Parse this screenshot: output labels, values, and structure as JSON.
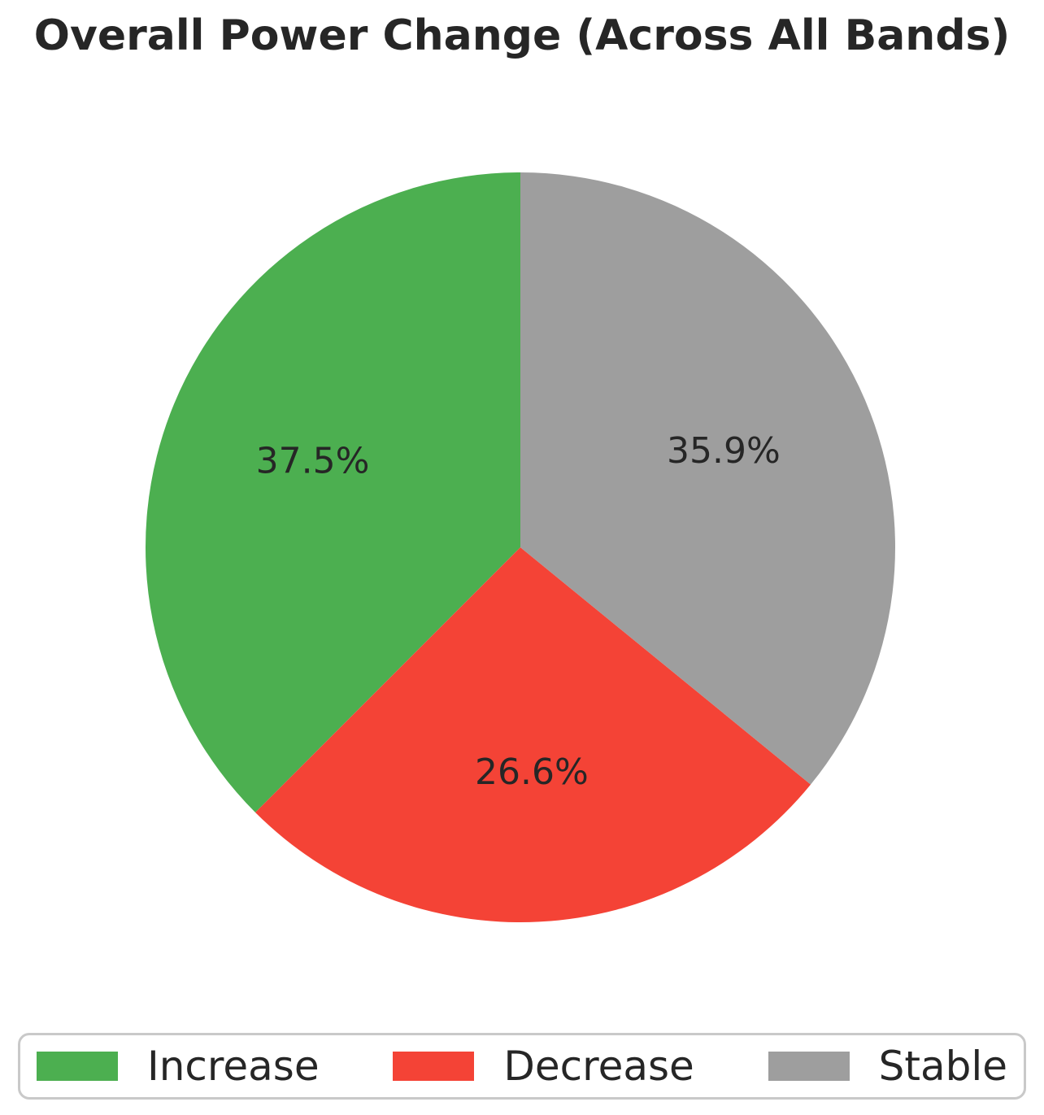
{
  "chart_data": {
    "type": "pie",
    "title": "Overall Power Change (Across All Bands)",
    "labels": [
      "Increase",
      "Decrease",
      "Stable"
    ],
    "values": [
      37.5,
      26.6,
      35.9
    ],
    "pct_labels": [
      "37.5%",
      "26.6%",
      "35.9%"
    ],
    "colors": [
      "#4caf50",
      "#f44336",
      "#9e9e9e"
    ],
    "start_angle_deg": 90,
    "direction": "counterclockwise",
    "label_radius_fraction": 0.6,
    "legend_position": "bottom",
    "text_color": "#262626",
    "background_color": "#ffffff"
  }
}
